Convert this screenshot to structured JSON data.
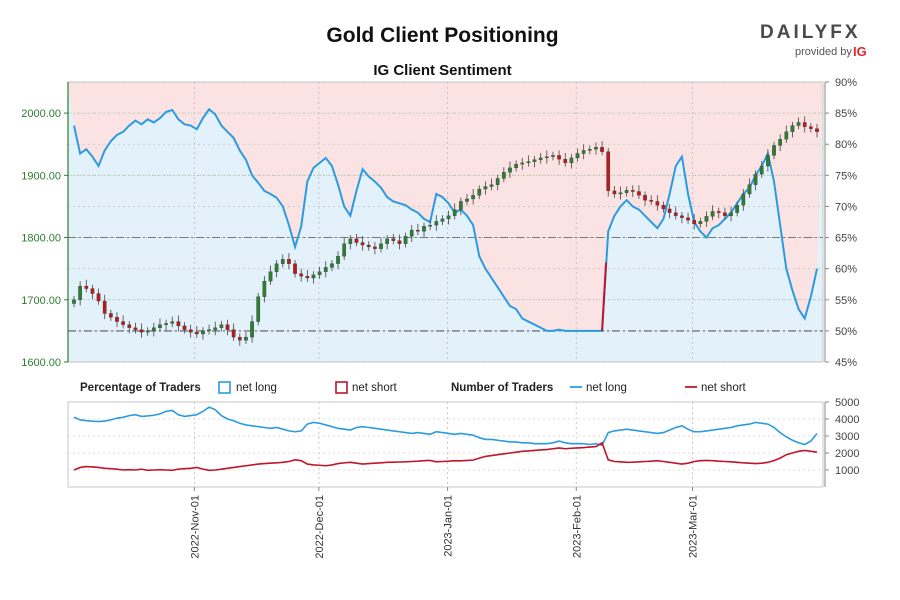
{
  "header": {
    "title": "Gold Client Positioning",
    "subtitle": "IG Client Sentiment"
  },
  "logo": {
    "word": "DAILYFX",
    "provided_by": "provided by",
    "ig": "IG"
  },
  "legend": {
    "pct_label": "Percentage of Traders",
    "pct_long": "net long",
    "pct_short": "net short",
    "num_label": "Number of Traders",
    "num_long": "net long",
    "num_short": "net short"
  },
  "colors": {
    "long": "#2b9be0",
    "short": "#c0162b",
    "bull_candle": "#2e7d32",
    "bear_candle": "#b71c1c",
    "long_zone": "#e3f1fb",
    "short_zone": "#fbe3e3",
    "price_axis": "#2e7d32"
  },
  "chart_data": [
    {
      "type": "candlestick",
      "title": "Gold Client Positioning",
      "subtitle": "IG Client Sentiment",
      "x_start": "2022-10-03",
      "x_end": "2023-03-31",
      "x_ticks": [
        "2022-Nov-01",
        "2022-Dec-01",
        "2023-Jan-01",
        "2023-Feb-01",
        "2023-Mar-01"
      ],
      "price_axis": {
        "ylim": [
          1600,
          2050
        ],
        "ticks": [
          "1600.00",
          "1700.00",
          "1800.00",
          "1900.00",
          "2000.00"
        ]
      },
      "sentiment_axis": {
        "ylim": [
          45,
          90
        ],
        "ticks": [
          "45%",
          "50%",
          "55%",
          "60%",
          "65%",
          "70%",
          "75%",
          "80%",
          "85%",
          "90%"
        ]
      },
      "reference_lines": [
        50,
        65
      ],
      "close_price": [
        1700,
        1722,
        1718,
        1710,
        1698,
        1678,
        1672,
        1665,
        1660,
        1655,
        1652,
        1648,
        1650,
        1655,
        1660,
        1662,
        1665,
        1658,
        1652,
        1648,
        1645,
        1650,
        1652,
        1655,
        1660,
        1652,
        1640,
        1635,
        1640,
        1665,
        1705,
        1730,
        1745,
        1758,
        1765,
        1758,
        1742,
        1738,
        1735,
        1740,
        1745,
        1752,
        1758,
        1770,
        1790,
        1798,
        1792,
        1788,
        1785,
        1782,
        1790,
        1798,
        1795,
        1790,
        1802,
        1812,
        1810,
        1818,
        1820,
        1826,
        1830,
        1835,
        1845,
        1858,
        1862,
        1868,
        1878,
        1882,
        1885,
        1895,
        1905,
        1912,
        1918,
        1920,
        1922,
        1925,
        1928,
        1930,
        1932,
        1926,
        1920,
        1928,
        1935,
        1940,
        1942,
        1945,
        1938,
        1875,
        1870,
        1872,
        1876,
        1874,
        1868,
        1860,
        1858,
        1852,
        1846,
        1840,
        1835,
        1832,
        1828,
        1822,
        1826,
        1834,
        1842,
        1840,
        1835,
        1840,
        1852,
        1870,
        1885,
        1902,
        1915,
        1932,
        1948,
        1958,
        1970,
        1980,
        1985,
        1978,
        1975,
        1970
      ],
      "series": [
        {
          "name": "net long",
          "unit": "%",
          "values": [
            83.0,
            78.5,
            79.2,
            78.0,
            76.5,
            79.0,
            80.5,
            81.5,
            82.0,
            83.0,
            83.8,
            83.2,
            84.0,
            83.5,
            84.2,
            85.2,
            85.5,
            84.0,
            83.2,
            83.0,
            82.4,
            84.2,
            85.6,
            84.8,
            83.0,
            82.0,
            81.0,
            79.0,
            77.5,
            75.0,
            73.8,
            72.5,
            72.0,
            71.4,
            70.0,
            67.0,
            63.5,
            66.8,
            74.0,
            76.2,
            77.0,
            77.8,
            76.5,
            73.5,
            70.0,
            68.5,
            72.5,
            76.0,
            74.8,
            74.0,
            73.0,
            71.5,
            70.8,
            70.5,
            70.2,
            69.5,
            69.0,
            68.0,
            67.5,
            72.0,
            71.5,
            70.5,
            69.0,
            69.5,
            68.5,
            67.0,
            62.0,
            60.0,
            58.5,
            57.0,
            55.5,
            54.0,
            53.5,
            52.0,
            51.5,
            51.0,
            50.5,
            50.0,
            50.0,
            50.2,
            50.0,
            50.0,
            50.0,
            50.0,
            50.0,
            50.0,
            50.0,
            66.0,
            68.5,
            70.0,
            71.0,
            70.0,
            69.5,
            68.5,
            67.5,
            66.5,
            68.0,
            72.0,
            76.5,
            78.0,
            72.0,
            67.5,
            66.0,
            65.0,
            66.5,
            67.0,
            68.0,
            69.0,
            70.5,
            72.0,
            73.0,
            75.0,
            76.5,
            78.5,
            74.0,
            67.0,
            60.0,
            56.5,
            53.5,
            52.0,
            55.5,
            60.0
          ]
        },
        {
          "name": "net long",
          "unit": "traders",
          "values": [
            4100,
            3950,
            3900,
            3870,
            3850,
            3880,
            3950,
            4050,
            4100,
            4200,
            4250,
            4150,
            4180,
            4220,
            4300,
            4450,
            4500,
            4250,
            4150,
            4200,
            4250,
            4450,
            4700,
            4550,
            4200,
            4000,
            3900,
            3750,
            3650,
            3600,
            3550,
            3500,
            3450,
            3500,
            3400,
            3300,
            3250,
            3300,
            3700,
            3800,
            3750,
            3650,
            3550,
            3450,
            3400,
            3350,
            3500,
            3550,
            3500,
            3450,
            3400,
            3350,
            3300,
            3250,
            3200,
            3150,
            3200,
            3150,
            3100,
            3250,
            3200,
            3150,
            3100,
            3150,
            3100,
            3050,
            2900,
            2800,
            2800,
            2750,
            2700,
            2650,
            2650,
            2600,
            2600,
            2550,
            2550,
            2550,
            2600,
            2700,
            2600,
            2550,
            2550,
            2550,
            2500,
            2550,
            2450,
            3200,
            3300,
            3350,
            3400,
            3350,
            3300,
            3250,
            3200,
            3150,
            3200,
            3350,
            3500,
            3600,
            3400,
            3250,
            3250,
            3300,
            3350,
            3400,
            3450,
            3500,
            3600,
            3650,
            3700,
            3800,
            3750,
            3700,
            3500,
            3200,
            2950,
            2750,
            2600,
            2500,
            2700,
            3150
          ]
        },
        {
          "name": "net short",
          "unit": "traders",
          "values": [
            1000,
            1150,
            1200,
            1180,
            1150,
            1100,
            1080,
            1050,
            1000,
            1020,
            1000,
            1050,
            980,
            1000,
            1020,
            1000,
            980,
            1050,
            1080,
            1100,
            1150,
            1050,
            980,
            1000,
            1050,
            1100,
            1150,
            1200,
            1250,
            1300,
            1350,
            1380,
            1400,
            1420,
            1450,
            1500,
            1600,
            1550,
            1350,
            1300,
            1280,
            1250,
            1300,
            1380,
            1420,
            1450,
            1400,
            1350,
            1380,
            1400,
            1420,
            1450,
            1460,
            1470,
            1480,
            1500,
            1520,
            1550,
            1560,
            1480,
            1500,
            1520,
            1550,
            1540,
            1560,
            1580,
            1700,
            1800,
            1850,
            1900,
            1950,
            2000,
            2050,
            2100,
            2120,
            2150,
            2180,
            2200,
            2250,
            2300,
            2250,
            2280,
            2300,
            2320,
            2350,
            2380,
            2600,
            1600,
            1500,
            1480,
            1450,
            1460,
            1480,
            1500,
            1520,
            1550,
            1500,
            1450,
            1400,
            1350,
            1400,
            1500,
            1550,
            1560,
            1550,
            1520,
            1500,
            1480,
            1450,
            1420,
            1400,
            1380,
            1400,
            1450,
            1550,
            1700,
            1900,
            2000,
            2100,
            2150,
            2100,
            2050
          ]
        }
      ],
      "traders_axis": {
        "ylim": [
          0,
          5000
        ],
        "ticks": [
          "1000",
          "2000",
          "3000",
          "4000",
          "5000"
        ]
      }
    }
  ]
}
